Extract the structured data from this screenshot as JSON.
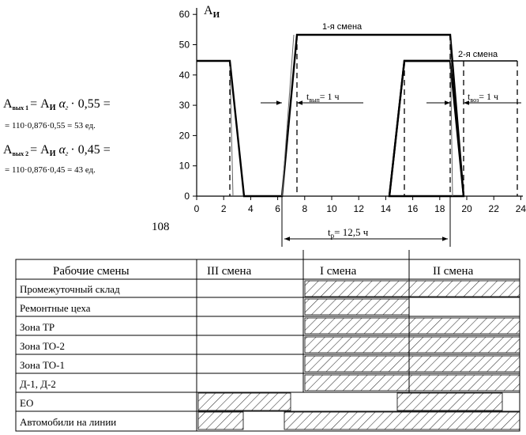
{
  "graph": {
    "y_axis_label": "А",
    "y_axis_label_sub": "И",
    "x_ticks": [
      "0",
      "2",
      "4",
      "6",
      "8",
      "10",
      "12",
      "14",
      "16",
      "18",
      "20",
      "22",
      "24"
    ],
    "y_ticks": [
      "0",
      "10",
      "20",
      "30",
      "40",
      "50",
      "60"
    ],
    "shift1_label": "1-я смена",
    "shift2_label": "2-я смена",
    "t_out_label": "t",
    "t_out_sub": "вып",
    "t_out_value": "= 1 ч",
    "t_ret_label": "t",
    "t_ret_sub": "воз",
    "t_ret_value": "= 1 ч",
    "tr_label": "t",
    "tr_sub": "р",
    "tr_value": "= 12,5 ч",
    "page_number": "108"
  },
  "formulas": {
    "f1_lhs": "А",
    "f1_lhs_sub": "вых 1",
    "f1_rhs_a": "= А",
    "f1_rhs_sub": "И",
    "f1_alpha": "α",
    "f1_alpha_sub": "г",
    "f1_tail": "· 0,55 =",
    "f1_line2": "= 110·0,876·0,55 = 53 ед.",
    "f2_lhs": "А",
    "f2_lhs_sub": "вых 2",
    "f2_rhs_a": "= А",
    "f2_rhs_sub": "И",
    "f2_alpha": "α",
    "f2_alpha_sub": "г",
    "f2_tail": "· 0,45 =",
    "f2_line2": "= 110·0,876·0,45 = 43 ед."
  },
  "table": {
    "headers": [
      "Рабочие смены",
      "III смена",
      "I смена",
      "II смена"
    ],
    "rows": [
      "Промежуточный склад",
      "Ремонтные цеха",
      "Зона ТР",
      "Зона ТО-2",
      "Зона ТО-1",
      "Д-1, Д-2",
      "ЕО",
      "Автомобили на линии"
    ]
  }
}
